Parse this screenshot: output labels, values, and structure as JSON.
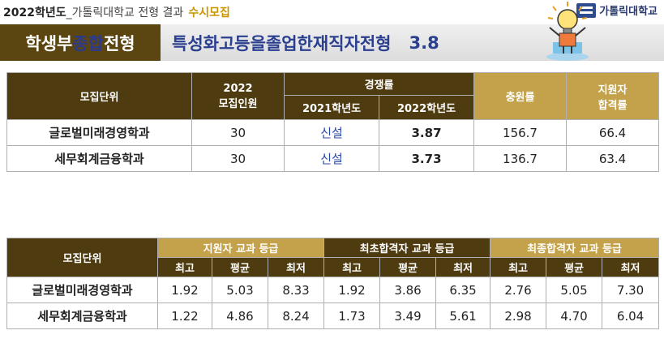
{
  "header": {
    "year": "2022학년도",
    "subtitle": "_가톨릭대학교 전형 결과",
    "category": "수시모집",
    "logo_text": "가톨릭대학교"
  },
  "banner": {
    "badge_prefix": "학생부",
    "badge_highlight": "종합",
    "badge_suffix": "전형",
    "title": "특성화고등을졸업한재직자전형",
    "rate": "3.8"
  },
  "table1": {
    "headers": {
      "dept": "모집단위",
      "quota_line1": "2022",
      "quota_line2": "모집인원",
      "competition": "경쟁률",
      "y2021": "2021학년도",
      "y2022": "2022학년도",
      "fill_rate": "충원률",
      "pass_line1": "지원자",
      "pass_line2": "합격률"
    },
    "rows": [
      {
        "dept": "글로벌미래경영학과",
        "quota": "30",
        "c2021": "신설",
        "c2022": "3.87",
        "fill": "156.7",
        "pass": "66.4"
      },
      {
        "dept": "세무회계금융학과",
        "quota": "30",
        "c2021": "신설",
        "c2022": "3.73",
        "fill": "136.7",
        "pass": "63.4"
      }
    ]
  },
  "table2": {
    "headers": {
      "dept": "모집단위",
      "applicant": "지원자 교과 등급",
      "first_pass": "최초합격자 교과 등급",
      "final_pass": "최종합격자 교과 등급",
      "max": "최고",
      "avg": "평균",
      "min": "최저"
    },
    "rows": [
      {
        "dept": "글로벌미래경영학과",
        "a": [
          "1.92",
          "5.03",
          "8.33"
        ],
        "f": [
          "1.92",
          "3.86",
          "6.35"
        ],
        "l": [
          "2.76",
          "5.05",
          "7.30"
        ]
      },
      {
        "dept": "세무회계금융학과",
        "a": [
          "1.22",
          "4.86",
          "8.24"
        ],
        "f": [
          "1.73",
          "3.49",
          "5.61"
        ],
        "l": [
          "2.98",
          "4.70",
          "6.04"
        ]
      }
    ]
  },
  "colors": {
    "dark": "#4e3b10",
    "gold": "#c3a24b",
    "title_blue": "#2a3f8f"
  },
  "icons": {
    "illustration": "lightbulb-person-icon",
    "logo": "university-logo-icon"
  }
}
